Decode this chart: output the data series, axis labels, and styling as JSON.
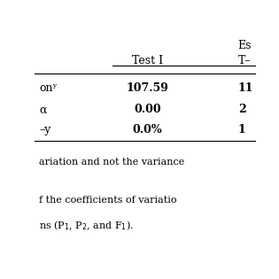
{
  "header_main": "Estim.",
  "col1_header": "Test I",
  "col2_header": "T–",
  "row_labels": [
    "onʸ",
    "α",
    "–y"
  ],
  "col1_values": [
    "107.59",
    "0.00",
    "0.0%"
  ],
  "col2_values": [
    "11",
    "2",
    "1"
  ],
  "footnote1": "ariation and not the variance",
  "footnote2": "f the coefficients of variatio",
  "footnote3": "ns (P$_1$, P$_2$, and F$_1$).",
  "bg_color": "#ffffff",
  "text_color": "#000000",
  "font_size": 9,
  "line_color": "#000000"
}
